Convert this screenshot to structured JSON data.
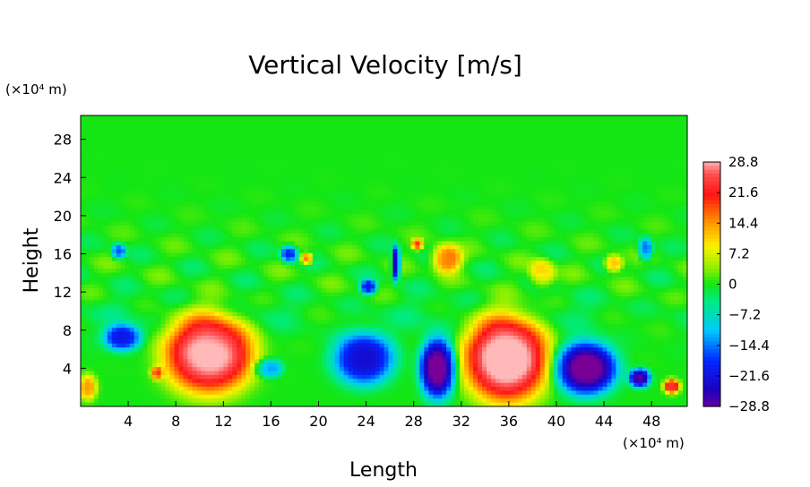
{
  "chart_data": {
    "type": "heatmap",
    "title": "Vertical Velocity [m/s]",
    "xlabel": "Length",
    "ylabel": "Height",
    "x_unit": "(×10⁴ m)",
    "y_unit": "(×10⁴ m)",
    "xlim": [
      0,
      51
    ],
    "ylim": [
      0,
      30.5
    ],
    "x_ticks": [
      4,
      8,
      12,
      16,
      20,
      24,
      28,
      32,
      36,
      40,
      44,
      48
    ],
    "y_ticks": [
      4,
      8,
      12,
      16,
      20,
      24,
      28
    ],
    "colorbar": {
      "min": -28.8,
      "max": 28.8,
      "tick_values": [
        28.8,
        21.6,
        14.4,
        7.2,
        0,
        -7.2,
        -14.4,
        -21.6,
        -28.8
      ],
      "tick_labels": [
        "28.8",
        "21.6",
        "14.4",
        "7.2",
        "0",
        "−7.2",
        "−14.4",
        "−21.6",
        "−28.8"
      ]
    },
    "features": [
      {
        "x": 10.8,
        "y": 5.5,
        "rx": 3.8,
        "ry": 4.2,
        "value": 30
      },
      {
        "x": 35.8,
        "y": 5.0,
        "rx": 3.6,
        "ry": 4.6,
        "value": 32
      },
      {
        "x": 42.5,
        "y": 4.0,
        "rx": 2.6,
        "ry": 2.8,
        "value": -32
      },
      {
        "x": 30.0,
        "y": 4.0,
        "rx": 1.5,
        "ry": 3.2,
        "value": -32
      },
      {
        "x": 23.8,
        "y": 5.0,
        "rx": 2.6,
        "ry": 2.8,
        "value": -23
      },
      {
        "x": 3.5,
        "y": 7.2,
        "rx": 1.6,
        "ry": 1.4,
        "value": -21
      },
      {
        "x": 26.5,
        "y": 15.0,
        "rx": 0.35,
        "ry": 1.8,
        "value": -28
      },
      {
        "x": 24.2,
        "y": 12.5,
        "rx": 0.7,
        "ry": 0.8,
        "value": -20
      },
      {
        "x": 47.0,
        "y": 3.0,
        "rx": 0.9,
        "ry": 1.0,
        "value": -28
      },
      {
        "x": 49.7,
        "y": 2.1,
        "rx": 0.7,
        "ry": 0.8,
        "value": 24
      },
      {
        "x": 0.6,
        "y": 2.0,
        "rx": 0.8,
        "ry": 1.4,
        "value": 14
      },
      {
        "x": 6.4,
        "y": 3.5,
        "rx": 0.5,
        "ry": 0.7,
        "value": 15
      },
      {
        "x": 30.8,
        "y": 15.5,
        "rx": 1.3,
        "ry": 1.5,
        "value": 17
      },
      {
        "x": 19.0,
        "y": 15.5,
        "rx": 0.5,
        "ry": 0.6,
        "value": 18
      },
      {
        "x": 38.8,
        "y": 14.0,
        "rx": 1.1,
        "ry": 1.5,
        "value": 11
      },
      {
        "x": 44.8,
        "y": 15.0,
        "rx": 0.8,
        "ry": 0.9,
        "value": 14
      },
      {
        "x": 17.5,
        "y": 16.0,
        "rx": 0.7,
        "ry": 0.9,
        "value": -19
      },
      {
        "x": 3.2,
        "y": 16.3,
        "rx": 0.6,
        "ry": 0.8,
        "value": -16
      },
      {
        "x": 47.5,
        "y": 16.5,
        "rx": 0.6,
        "ry": 1.2,
        "value": -16
      },
      {
        "x": 28.3,
        "y": 17.0,
        "rx": 0.5,
        "ry": 0.6,
        "value": 18
      },
      {
        "x": 15.8,
        "y": 4.0,
        "rx": 1.2,
        "ry": 1.0,
        "value": -14
      }
    ]
  }
}
